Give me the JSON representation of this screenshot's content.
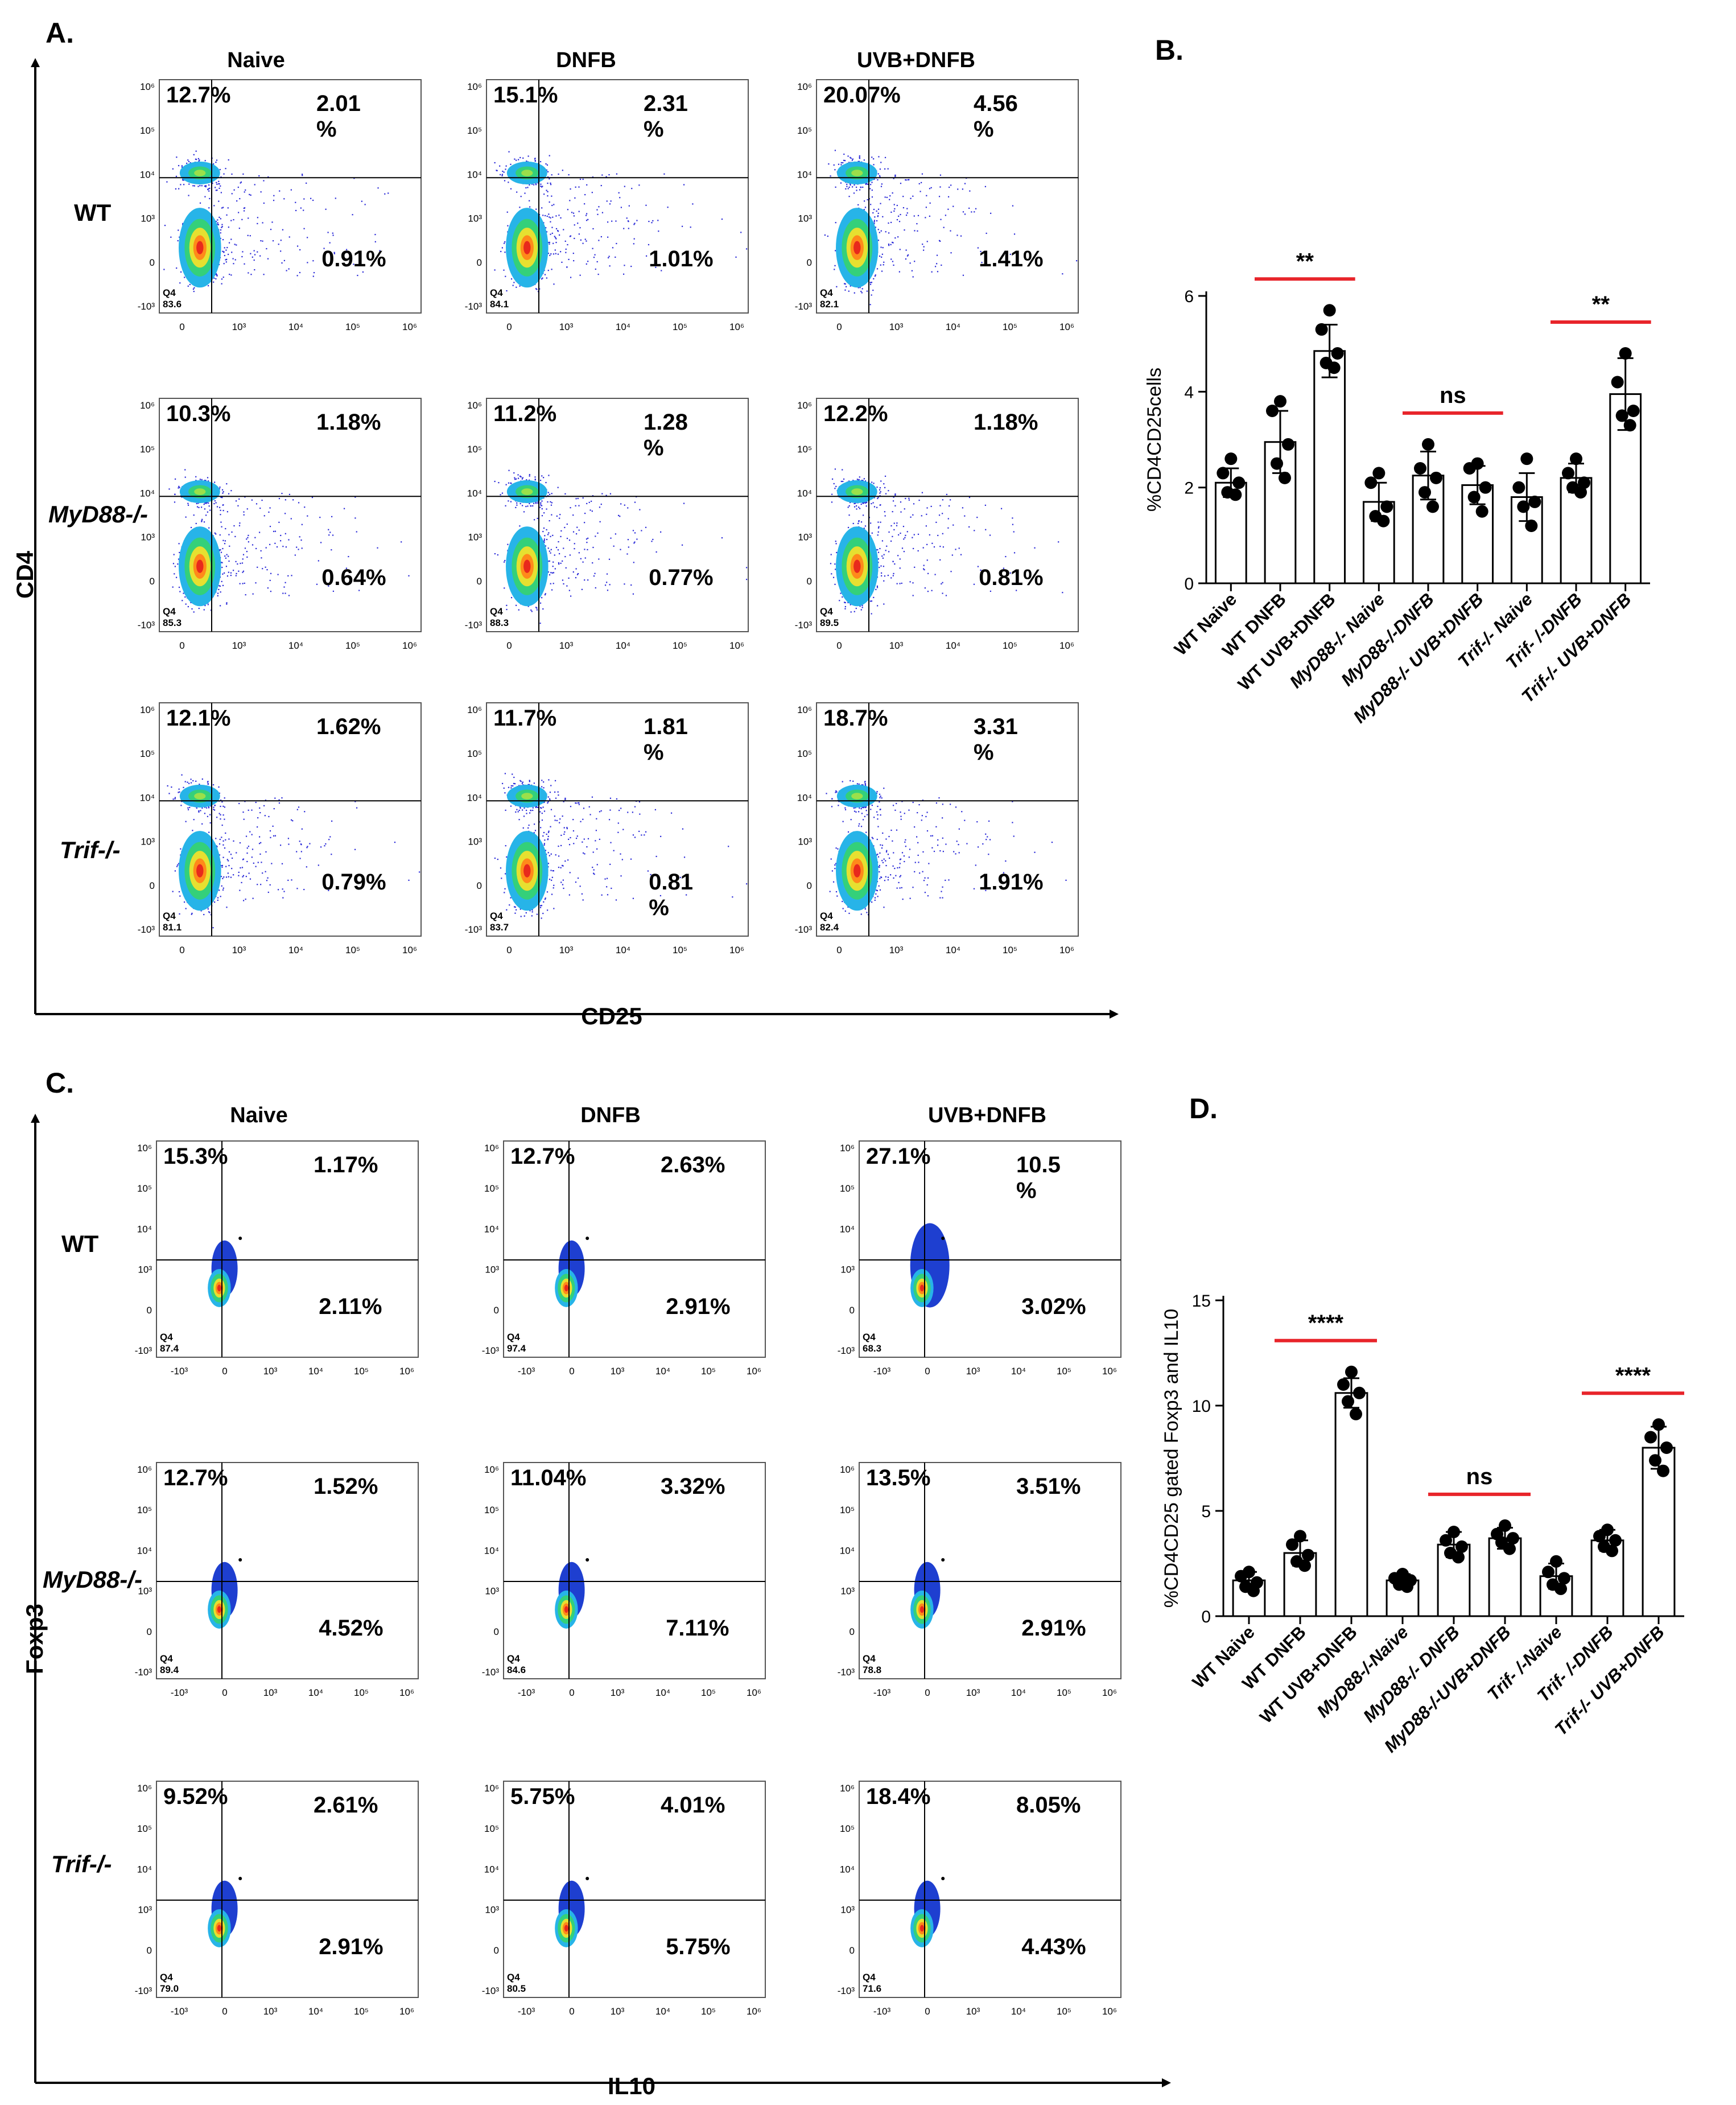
{
  "panels": {
    "A": {
      "label": "A.",
      "col_titles": [
        "Naive",
        "DNFB",
        "UVB+DNFB"
      ],
      "row_labels": [
        {
          "text": "WT",
          "italic": false
        },
        {
          "text": "MyD88-/-",
          "italic": true
        },
        {
          "text": "Trif-/-",
          "italic": true
        }
      ],
      "y_axis_label": "CD4",
      "x_axis_label": "CD25",
      "y_ticks": [
        "10⁶",
        "10⁵",
        "10⁴",
        "10³",
        "0",
        "-10³"
      ],
      "x_ticks": [
        "0",
        "10³",
        "10⁴",
        "10⁵",
        "10⁶"
      ],
      "q4_label": "Q4",
      "plots": [
        [
          {
            "ul": "12.7%",
            "ur": "2.01\n%",
            "lr": "0.91%",
            "q4": "83.6"
          },
          {
            "ul": "15.1%",
            "ur": "2.31\n%",
            "lr": "1.01%",
            "q4": "84.1"
          },
          {
            "ul": "20.07%",
            "ur": "4.56\n%",
            "lr": "1.41%",
            "q4": "82.1"
          }
        ],
        [
          {
            "ul": "10.3%",
            "ur": "1.18%",
            "lr": "0.64%",
            "q4": "85.3"
          },
          {
            "ul": "11.2%",
            "ur": "1.28\n%",
            "lr": "0.77%",
            "q4": "88.3"
          },
          {
            "ul": "12.2%",
            "ur": "1.18%",
            "lr": "0.81%",
            "q4": "89.5"
          }
        ],
        [
          {
            "ul": "12.1%",
            "ur": "1.62%",
            "lr": "0.79%",
            "q4": "81.1"
          },
          {
            "ul": "11.7%",
            "ur": "1.81\n%",
            "lr": "0.81\n%",
            "q4": "83.7"
          },
          {
            "ul": "18.7%",
            "ur": "3.31\n%",
            "lr": "1.91%",
            "q4": "82.4"
          }
        ]
      ]
    },
    "C": {
      "label": "C.",
      "col_titles": [
        "Naive",
        "DNFB",
        "UVB+DNFB"
      ],
      "row_labels": [
        {
          "text": "WT",
          "italic": false
        },
        {
          "text": "MyD88-/-",
          "italic": true
        },
        {
          "text": "Trif-/-",
          "italic": true
        }
      ],
      "y_axis_label": "Foxp3",
      "x_axis_label": "IL10",
      "y_ticks": [
        "10⁶",
        "10⁵",
        "10⁴",
        "10³",
        "0",
        "-10³"
      ],
      "x_ticks": [
        "-10³",
        "0",
        "10³",
        "10⁴",
        "10⁵",
        "10⁶"
      ],
      "q4_label": "Q4",
      "plots": [
        [
          {
            "ul": "15.3%",
            "ur": "1.17%",
            "lr": "2.11%",
            "q4": "87.4"
          },
          {
            "ul": "12.7%",
            "ur": "2.63%",
            "lr": "2.91%",
            "q4": "97.4"
          },
          {
            "ul": "27.1%",
            "ur": "10.5\n%",
            "lr": "3.02%",
            "q4": "68.3"
          }
        ],
        [
          {
            "ul": "12.7%",
            "ur": "1.52%",
            "lr": "4.52%",
            "q4": "89.4"
          },
          {
            "ul": "11.04%",
            "ur": "3.32%",
            "lr": "7.11%",
            "q4": "84.6"
          },
          {
            "ul": "13.5%",
            "ur": "3.51%",
            "lr": "2.91%",
            "q4": "78.8"
          }
        ],
        [
          {
            "ul": "9.52%",
            "ur": "2.61%",
            "lr": "2.91%",
            "q4": "79.0"
          },
          {
            "ul": "5.75%",
            "ur": "4.01%",
            "lr": "5.75%",
            "q4": "80.5"
          },
          {
            "ul": "18.4%",
            "ur": "8.05%",
            "lr": "4.43%",
            "q4": "71.6"
          }
        ]
      ]
    }
  },
  "chart_data": [
    {
      "panel": "B.",
      "type": "bar",
      "ylabel": "%CD4CD25cells",
      "ylim": [
        0,
        6
      ],
      "yticks": [
        0,
        2,
        4,
        6
      ],
      "categories": [
        "WT Naive",
        "WT DNFB",
        "WT UVB+DNFB",
        "MyD88-/- Naive",
        "MyD88-/-DNFB",
        "MyD88-/- UVB+DNFB",
        "Trif-/- Naive",
        "Trif- /-DNFB",
        "Trif-/- UVB+DNFB"
      ],
      "means": [
        2.1,
        2.95,
        4.85,
        1.7,
        2.25,
        2.05,
        1.8,
        2.2,
        3.95
      ],
      "sd": [
        0.3,
        0.65,
        0.55,
        0.4,
        0.5,
        0.4,
        0.5,
        0.3,
        0.75
      ],
      "points": [
        [
          2.6,
          2.3,
          2.1,
          1.9,
          1.85
        ],
        [
          3.8,
          3.6,
          2.9,
          2.5,
          2.2
        ],
        [
          5.7,
          5.3,
          4.8,
          4.6,
          4.5
        ],
        [
          2.3,
          2.1,
          1.6,
          1.4,
          1.3
        ],
        [
          2.9,
          2.4,
          2.2,
          1.9,
          1.6
        ],
        [
          2.5,
          2.4,
          2.0,
          1.8,
          1.5
        ],
        [
          2.6,
          2.0,
          1.7,
          1.6,
          1.2
        ],
        [
          2.6,
          2.3,
          2.1,
          2.0,
          1.9
        ],
        [
          4.8,
          4.2,
          3.6,
          3.5,
          3.3
        ]
      ],
      "significance": [
        {
          "from": 1,
          "to": 2,
          "label": "**"
        },
        {
          "from": 4,
          "to": 5,
          "label": "ns"
        },
        {
          "from": 7,
          "to": 8,
          "label": "**"
        }
      ]
    },
    {
      "panel": "D.",
      "type": "bar",
      "ylabel": "%CD4CD25 gated Foxp3 and IL10",
      "ylim": [
        0,
        15
      ],
      "yticks": [
        0,
        5,
        10,
        15
      ],
      "categories": [
        "WT Naive",
        "WT DNFB",
        "WT UVB+DNFB",
        "MyD88-/-Naive",
        "MyD88-/- DNFB",
        "MyD88-/-UVB+DNFB",
        "Trif- /-Naive",
        "Trif- /-DNFB",
        "Trif-/- UVB+DNFB"
      ],
      "means": [
        1.7,
        3.0,
        10.6,
        1.7,
        3.4,
        3.7,
        1.9,
        3.6,
        8.0
      ],
      "sd": [
        0.4,
        0.6,
        0.7,
        0.3,
        0.6,
        0.5,
        0.6,
        0.5,
        1.0
      ],
      "points": [
        [
          2.1,
          1.9,
          1.6,
          1.4,
          1.2
        ],
        [
          3.8,
          3.4,
          2.9,
          2.6,
          2.4
        ],
        [
          11.6,
          11.0,
          10.6,
          10.2,
          9.6
        ],
        [
          2.0,
          1.8,
          1.7,
          1.5,
          1.4
        ],
        [
          4.0,
          3.6,
          3.3,
          3.0,
          2.8
        ],
        [
          4.3,
          3.9,
          3.7,
          3.5,
          3.2
        ],
        [
          2.6,
          2.1,
          1.8,
          1.5,
          1.3
        ],
        [
          4.1,
          3.8,
          3.6,
          3.3,
          3.1
        ],
        [
          9.1,
          8.5,
          8.0,
          7.4,
          6.9
        ]
      ],
      "significance": [
        {
          "from": 1,
          "to": 2,
          "label": "****"
        },
        {
          "from": 4,
          "to": 5,
          "label": "ns"
        },
        {
          "from": 7,
          "to": 8,
          "label": "****"
        }
      ]
    }
  ]
}
